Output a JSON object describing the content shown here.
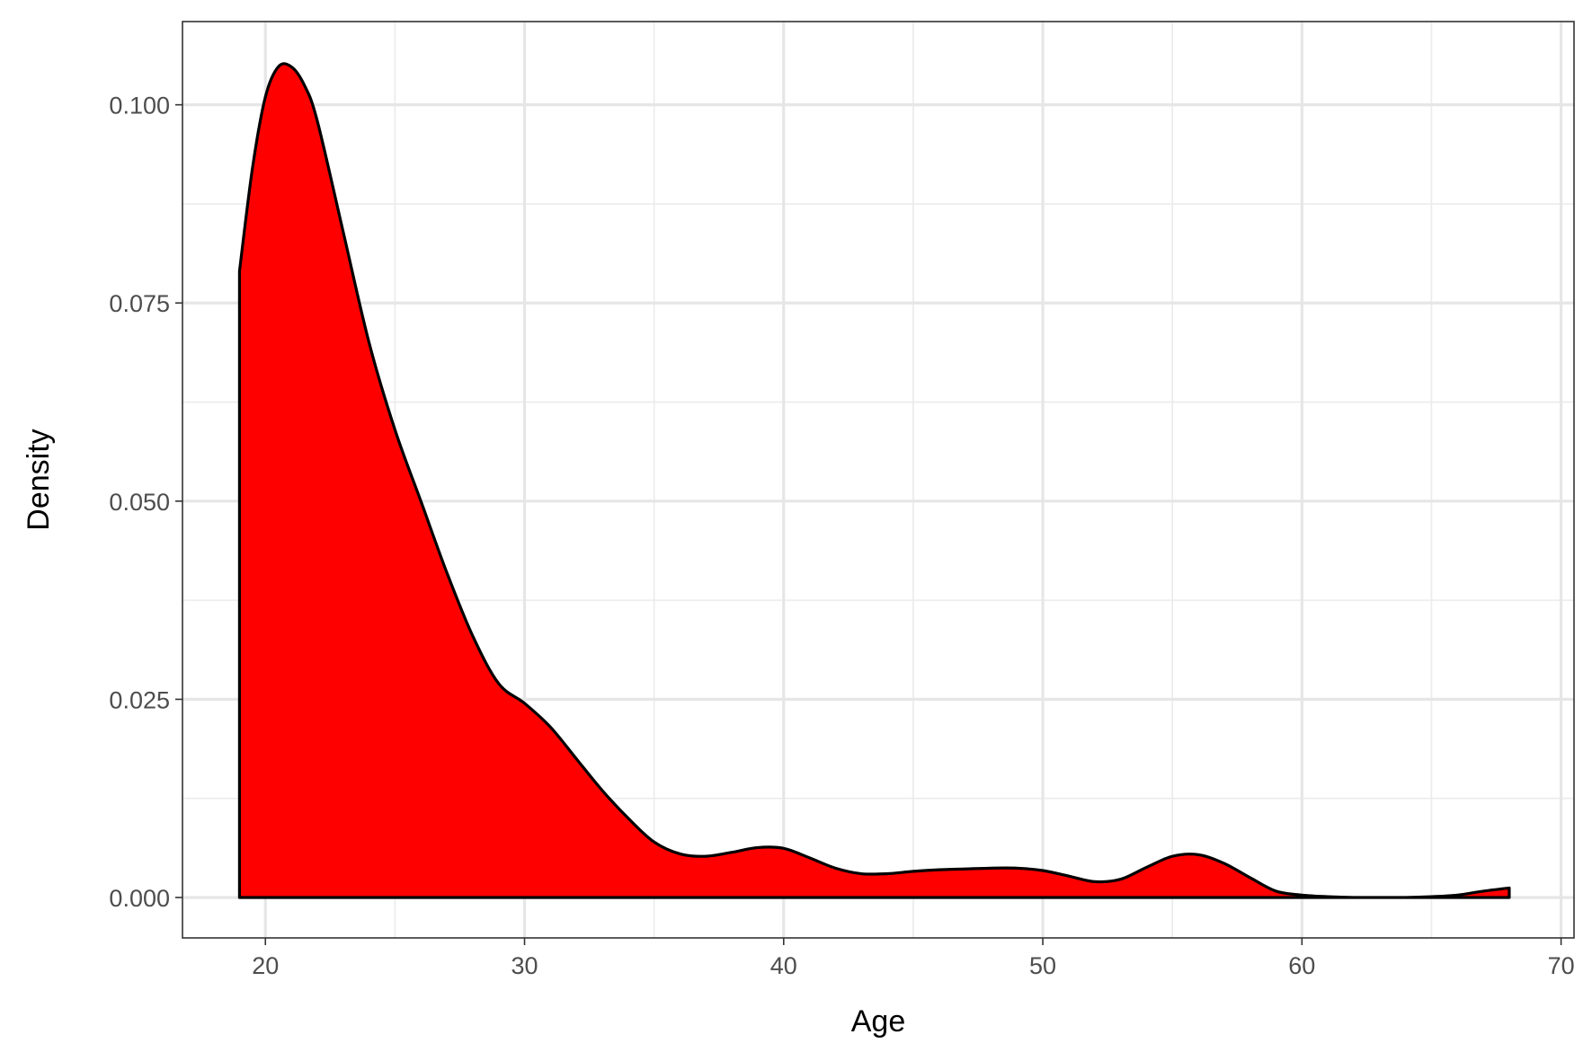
{
  "chart_data": {
    "type": "area",
    "title": "",
    "xlabel": "Age",
    "ylabel": "Density",
    "xlim": [
      16.8,
      70.5
    ],
    "ylim": [
      -0.0051,
      0.1105
    ],
    "x_ticks": [
      20,
      30,
      40,
      50,
      60,
      70
    ],
    "y_ticks": [
      0.0,
      0.025,
      0.05,
      0.075,
      0.1
    ],
    "x_tick_labels": [
      "20",
      "30",
      "40",
      "50",
      "60",
      "70"
    ],
    "y_tick_labels": [
      "0.000",
      "0.025",
      "0.050",
      "0.075",
      "0.100"
    ],
    "grid": true,
    "fill_color": "#ff0000",
    "line_color": "#000000",
    "series": [
      {
        "x": [
          19.0,
          19.5,
          20.0,
          20.5,
          21.0,
          21.5,
          22.0,
          23.0,
          24.0,
          25.0,
          26.0,
          27.0,
          28.0,
          29.0,
          30.0,
          31.0,
          32.0,
          33.0,
          34.0,
          35.0,
          36.0,
          37.0,
          38.0,
          39.0,
          40.0,
          41.0,
          42.0,
          43.0,
          44.0,
          45.0,
          46.0,
          47.0,
          48.0,
          49.0,
          50.0,
          51.0,
          52.0,
          53.0,
          54.0,
          55.0,
          56.0,
          57.0,
          58.0,
          59.0,
          60.0,
          61.0,
          62.0,
          63.0,
          64.0,
          65.0,
          66.0,
          67.0,
          68.0
        ],
        "y": [
          0.079,
          0.092,
          0.101,
          0.1048,
          0.1048,
          0.1025,
          0.098,
          0.084,
          0.07,
          0.059,
          0.05,
          0.041,
          0.033,
          0.027,
          0.0245,
          0.0215,
          0.0175,
          0.0135,
          0.01,
          0.007,
          0.0055,
          0.0052,
          0.0057,
          0.0063,
          0.0062,
          0.005,
          0.0037,
          0.003,
          0.003,
          0.0033,
          0.0035,
          0.0036,
          0.0037,
          0.0037,
          0.0034,
          0.0027,
          0.002,
          0.0023,
          0.0038,
          0.0052,
          0.0054,
          0.0043,
          0.0025,
          0.0008,
          0.0003,
          0.0001,
          0.0,
          0.0,
          0.0,
          0.0001,
          0.0003,
          0.0008,
          0.0012
        ]
      }
    ]
  }
}
